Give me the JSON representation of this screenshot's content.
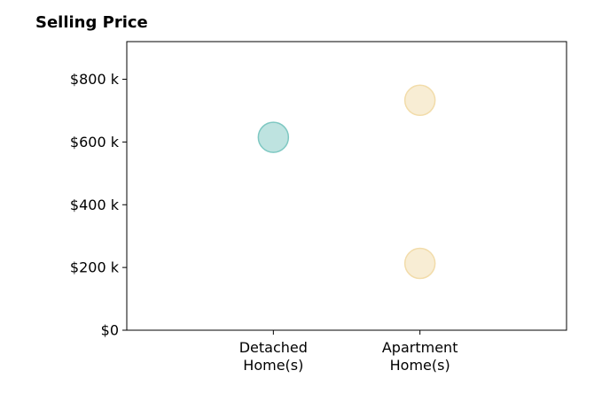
{
  "chart_data": {
    "type": "scatter",
    "title": "Selling Price",
    "xlabel": "",
    "ylabel": "",
    "categories": [
      [
        "Detached",
        "Home(s)"
      ],
      [
        "Apartment",
        "Home(s)"
      ]
    ],
    "x_ticks": [
      "Detached Home(s)",
      "Apartment Home(s)"
    ],
    "y_ticks": [
      {
        "value": 0,
        "label": "$0"
      },
      {
        "value": 200000,
        "label": "$200 k"
      },
      {
        "value": 400000,
        "label": "$400 k"
      },
      {
        "value": 600000,
        "label": "$600 k"
      },
      {
        "value": 800000,
        "label": "$800 k"
      }
    ],
    "ylim": [
      0,
      920000
    ],
    "grid": false,
    "points": [
      {
        "category": "Detached Home(s)",
        "value": 615000,
        "color": "#7ec8c2"
      },
      {
        "category": "Apartment Home(s)",
        "value": 733000,
        "color": "#f2dcaa"
      },
      {
        "category": "Apartment Home(s)",
        "value": 213000,
        "color": "#f2dcaa"
      }
    ]
  }
}
